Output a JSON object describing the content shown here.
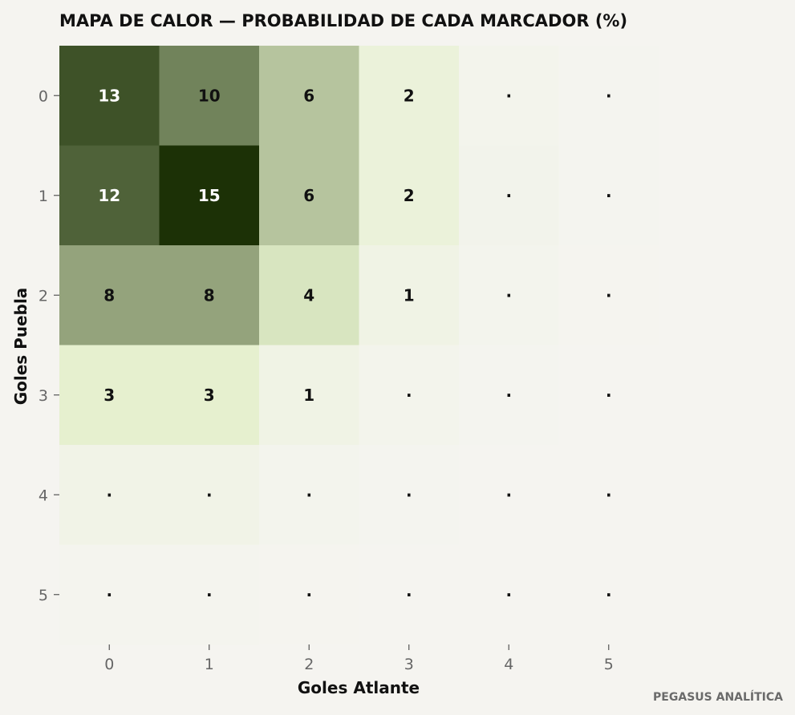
{
  "chart_data": {
    "type": "heatmap",
    "title": "MAPA DE CALOR — PROBABILIDAD DE CADA MARCADOR (%)",
    "xlabel": "Goles Atlante",
    "ylabel": "Goles Puebla",
    "x_categories": [
      "0",
      "1",
      "2",
      "3",
      "4",
      "5"
    ],
    "y_categories": [
      "0",
      "1",
      "2",
      "3",
      "4",
      "5"
    ],
    "values": [
      [
        13,
        10,
        6,
        2,
        0.4,
        0.1
      ],
      [
        12,
        15,
        6,
        2,
        0.5,
        0.1
      ],
      [
        8,
        8,
        4,
        1,
        0.3,
        0.05
      ],
      [
        3,
        3,
        1,
        0.4,
        0.1,
        0.02
      ],
      [
        0.8,
        0.8,
        0.3,
        0.1,
        0.03,
        0.01
      ],
      [
        0.2,
        0.2,
        0.05,
        0.02,
        0.01,
        0.0
      ]
    ],
    "cell_labels": [
      [
        "13",
        "10",
        "6",
        "2",
        "·",
        "·"
      ],
      [
        "12",
        "15",
        "6",
        "2",
        "·",
        "·"
      ],
      [
        "8",
        "8",
        "4",
        "1",
        "·",
        "·"
      ],
      [
        "3",
        "3",
        "1",
        "·",
        "·",
        "·"
      ],
      [
        "·",
        "·",
        "·",
        "·",
        "·",
        "·"
      ],
      [
        "·",
        "·",
        "·",
        "·",
        "·",
        "·"
      ]
    ],
    "color_low": "#f5f4f0",
    "color_mid": "#e4f0cc",
    "color_high": "#1c3106",
    "grid": false,
    "legend": "none"
  },
  "footer": {
    "credit": "PEGASUS ANALÍTICA"
  }
}
